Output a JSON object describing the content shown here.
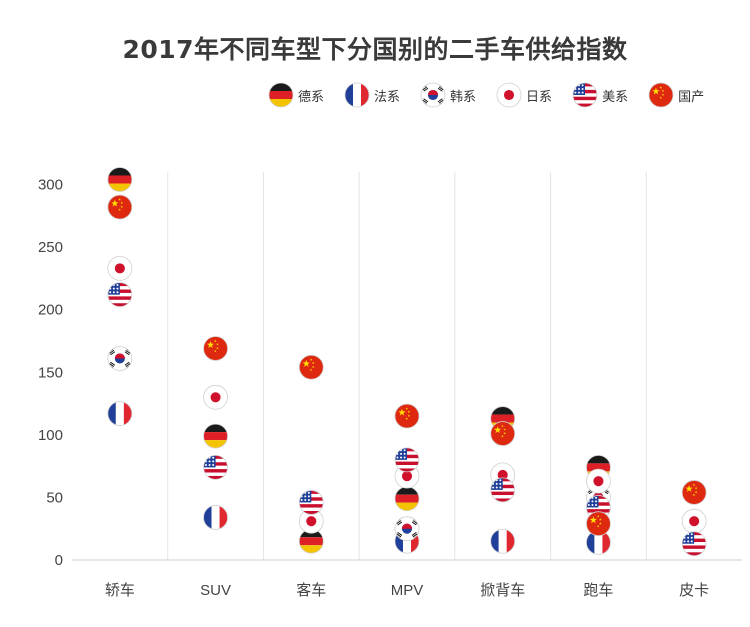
{
  "chart_data": {
    "type": "scatter",
    "title": "2017年不同车型下分国别的二手车供给指数",
    "xlabel": "",
    "ylabel": "",
    "categories": [
      "轿车",
      "SUV",
      "客车",
      "MPV",
      "掀背车",
      "跑车",
      "皮卡"
    ],
    "ylim": [
      0,
      310
    ],
    "yticks": [
      0,
      50,
      100,
      150,
      200,
      250,
      300
    ],
    "grid": "vertical",
    "legend_position": "top-right",
    "series": [
      {
        "name": "德系",
        "flag": "germany",
        "values": [
          304,
          99,
          15,
          49,
          113,
          74,
          null
        ]
      },
      {
        "name": "法系",
        "flag": "france",
        "values": [
          117,
          34,
          null,
          15,
          15,
          14,
          null
        ]
      },
      {
        "name": "韩系",
        "flag": "korea",
        "values": [
          161,
          null,
          null,
          25,
          null,
          50,
          null
        ]
      },
      {
        "name": "日系",
        "flag": "japan",
        "values": [
          233,
          130,
          31,
          67,
          68,
          63,
          31
        ]
      },
      {
        "name": "美系",
        "flag": "usa",
        "values": [
          212,
          74,
          46,
          80,
          56,
          42,
          13
        ]
      },
      {
        "name": "国产",
        "flag": "china",
        "values": [
          282,
          169,
          154,
          115,
          101,
          29,
          54
        ]
      }
    ]
  }
}
